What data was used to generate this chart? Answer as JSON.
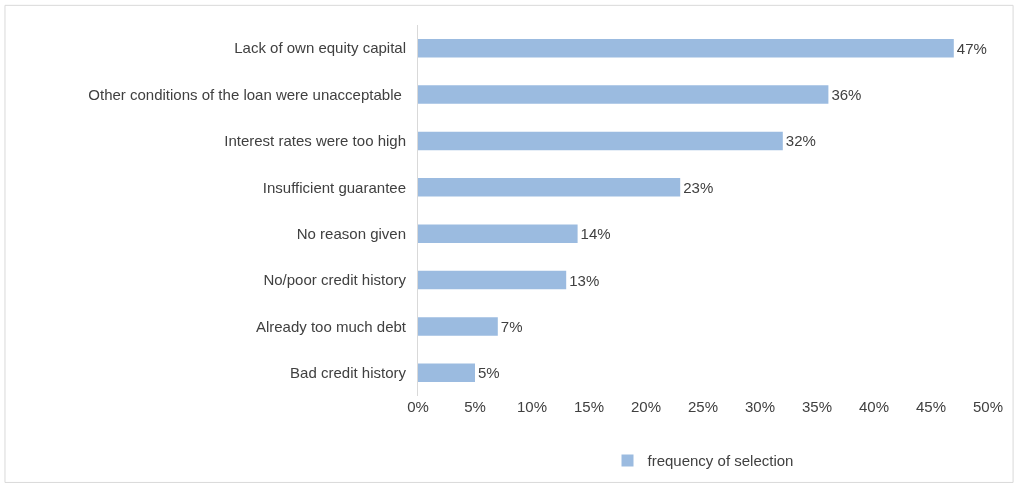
{
  "chart_data": {
    "type": "bar",
    "orientation": "horizontal",
    "categories": [
      "Lack of own equity capital",
      "Other conditions of the loan were unacceptable ",
      "Interest rates were too high",
      "Insufficient guarantee",
      "No reason given",
      "No/poor credit history",
      "Already too much debt",
      "Bad credit history"
    ],
    "series": [
      {
        "name": "frequency of selection",
        "color": "#9bbbe0",
        "values": [
          47,
          36,
          32,
          23,
          14,
          13,
          7,
          5
        ],
        "value_labels": [
          "47%",
          "36%",
          "32%",
          "23%",
          "14%",
          "13%",
          "7%",
          "5%"
        ]
      }
    ],
    "xlim": [
      0,
      50
    ],
    "xticks": [
      {
        "value": 0,
        "label": "0%"
      },
      {
        "value": 5,
        "label": "5%"
      },
      {
        "value": 10,
        "label": "10%"
      },
      {
        "value": 15,
        "label": "15%"
      },
      {
        "value": 20,
        "label": "20%"
      },
      {
        "value": 25,
        "label": "25%"
      },
      {
        "value": 30,
        "label": "30%"
      },
      {
        "value": 35,
        "label": "35%"
      },
      {
        "value": 40,
        "label": "40%"
      },
      {
        "value": 45,
        "label": "45%"
      },
      {
        "value": 50,
        "label": "50%"
      }
    ],
    "legend": "bottom"
  }
}
